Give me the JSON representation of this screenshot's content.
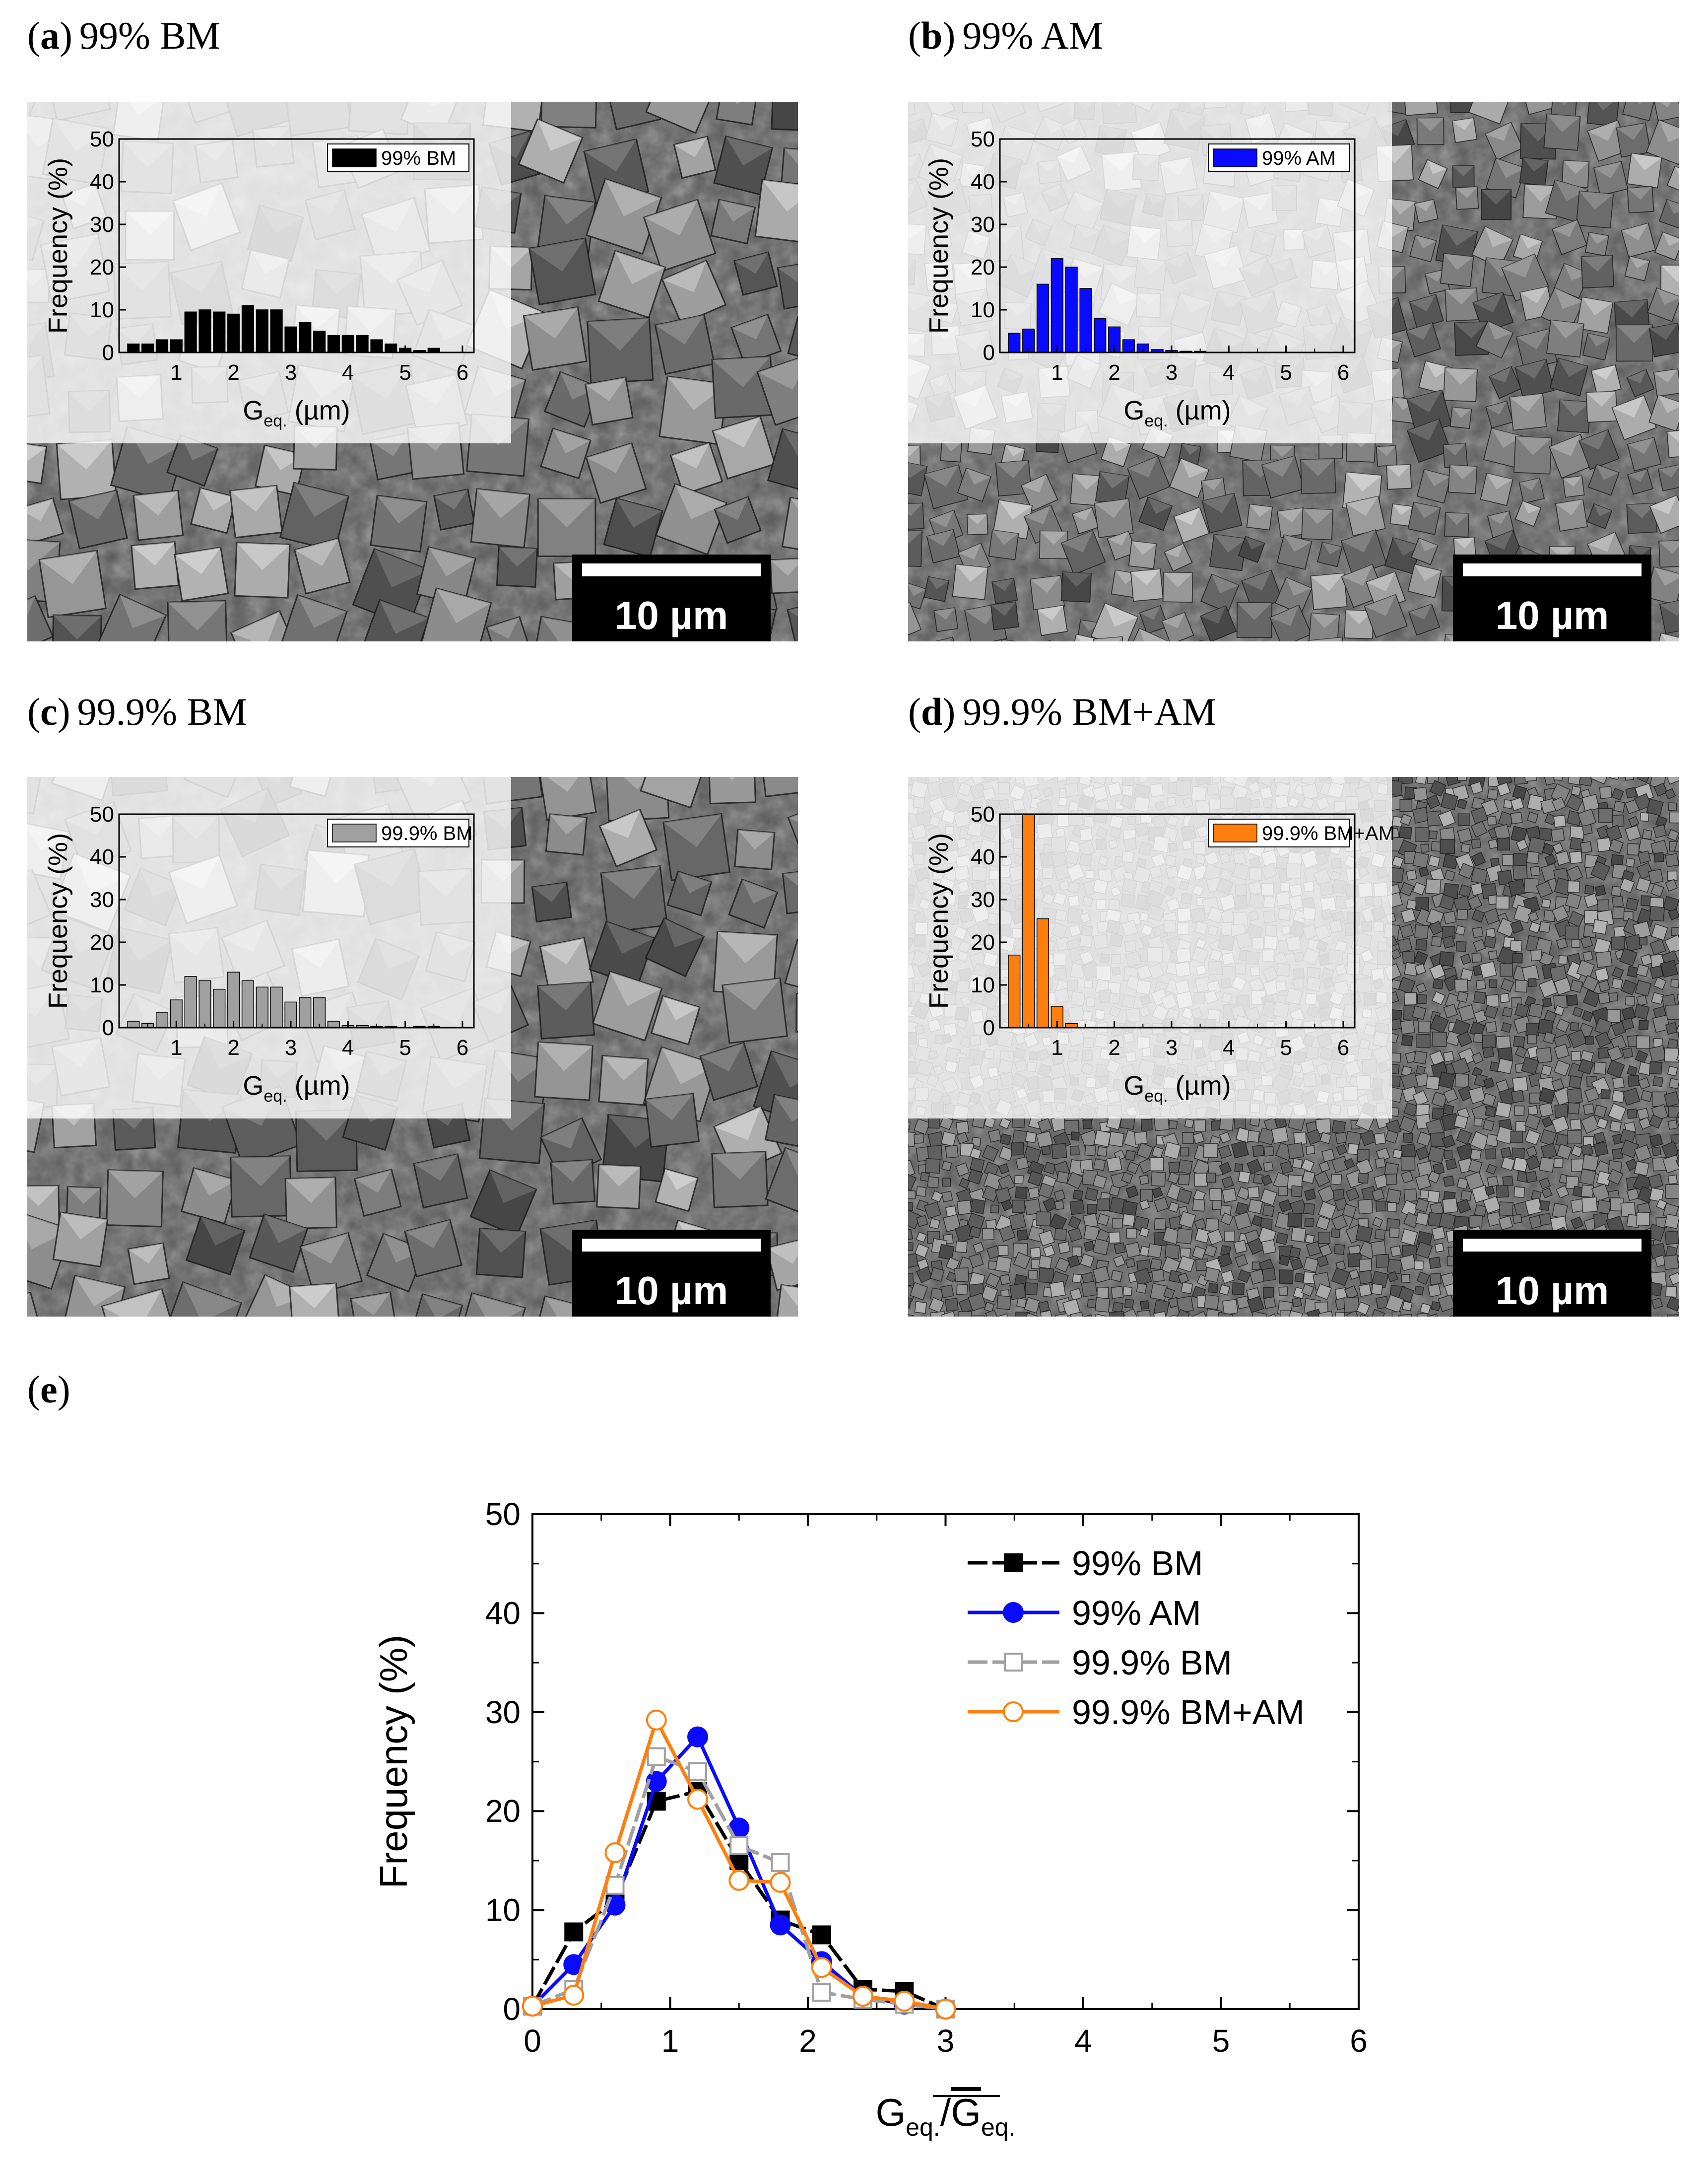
{
  "panels": [
    {
      "id": "a",
      "letter": "a",
      "title": "99% BM",
      "scale_bar": "10 µm",
      "sem_style": "coarse",
      "chart_data": {
        "type": "bar",
        "series_name": "99% BM",
        "color": "#000000",
        "bin_width": 0.25,
        "x": [
          0.25,
          0.5,
          0.75,
          1.0,
          1.25,
          1.5,
          1.75,
          2.0,
          2.25,
          2.5,
          2.75,
          3.0,
          3.25,
          3.5,
          3.75,
          4.0,
          4.25,
          4.5,
          4.75,
          5.0,
          5.25,
          5.5,
          5.75
        ],
        "values": [
          2,
          2,
          3,
          3,
          9.5,
          10,
          9.5,
          9,
          11,
          10,
          10,
          6,
          7,
          5,
          4,
          4,
          4,
          3,
          2,
          1,
          0.5,
          1,
          0
        ],
        "xlim": [
          0,
          6.2
        ],
        "ylim": [
          0,
          50
        ],
        "xticks": [
          "1",
          "2",
          "3",
          "4",
          "5",
          "6"
        ],
        "yticks": [
          "0",
          "10",
          "20",
          "30",
          "40",
          "50"
        ],
        "xlabel": "G",
        "xlabel_sub": "eq.",
        "xlabel_unit": " (µm)",
        "ylabel": "Frequency (%)"
      }
    },
    {
      "id": "b",
      "letter": "b",
      "title": "99% AM",
      "scale_bar": "10 µm",
      "sem_style": "medium",
      "chart_data": {
        "type": "bar",
        "series_name": "99% AM",
        "color": "#0a0aff",
        "bin_width": 0.25,
        "x": [
          0.25,
          0.5,
          0.75,
          1.0,
          1.25,
          1.5,
          1.75,
          2.0,
          2.25,
          2.5,
          2.75,
          3.0,
          3.25,
          3.5
        ],
        "values": [
          4.5,
          5.5,
          16,
          22,
          20,
          15,
          8,
          6,
          3,
          2,
          0.7,
          0.5,
          0.3,
          0.3
        ],
        "xlim": [
          0,
          6.2
        ],
        "ylim": [
          0,
          50
        ],
        "xticks": [
          "1",
          "2",
          "3",
          "4",
          "5",
          "6"
        ],
        "yticks": [
          "0",
          "10",
          "20",
          "30",
          "40",
          "50"
        ],
        "xlabel": "G",
        "xlabel_sub": "eq.",
        "xlabel_unit": " (µm)",
        "ylabel": "Frequency (%)"
      }
    },
    {
      "id": "c",
      "letter": "c",
      "title": "99.9% BM",
      "scale_bar": "10 µm",
      "sem_style": "coarse",
      "chart_data": {
        "type": "bar",
        "series_name": "99.9% BM",
        "color": "#a0a0a0",
        "bin_width": 0.25,
        "x": [
          0.25,
          0.5,
          0.75,
          1.0,
          1.25,
          1.5,
          1.75,
          2.0,
          2.25,
          2.5,
          2.75,
          3.0,
          3.25,
          3.5,
          3.75,
          4.0,
          4.25,
          4.5,
          4.75,
          5.0,
          5.25,
          5.5,
          5.75
        ],
        "values": [
          1.5,
          1,
          3.5,
          6.5,
          12,
          11,
          9,
          13,
          11,
          9.5,
          9.5,
          6,
          7,
          7,
          1.5,
          0.5,
          0.5,
          0.3,
          0.3,
          0,
          0.3,
          0.3,
          0
        ],
        "xlim": [
          0,
          6.2
        ],
        "ylim": [
          0,
          50
        ],
        "xticks": [
          "1",
          "2",
          "3",
          "4",
          "5",
          "6"
        ],
        "yticks": [
          "0",
          "10",
          "20",
          "30",
          "40",
          "50"
        ],
        "xlabel": "G",
        "xlabel_sub": "eq.",
        "xlabel_unit": " (µm)",
        "ylabel": "Frequency (%)"
      }
    },
    {
      "id": "d",
      "letter": "d",
      "title": "99.9% BM+AM",
      "scale_bar": "10 µm",
      "sem_style": "fine",
      "chart_data": {
        "type": "bar",
        "series_name": "99.9% BM+AM",
        "color": "#ff7f0e",
        "bin_width": 0.25,
        "x": [
          0.25,
          0.5,
          0.75,
          1.0,
          1.25
        ],
        "values": [
          17,
          50,
          25.5,
          5,
          1
        ],
        "xlim": [
          0,
          6.2
        ],
        "ylim": [
          0,
          50
        ],
        "xticks": [
          "1",
          "2",
          "3",
          "4",
          "5",
          "6"
        ],
        "yticks": [
          "0",
          "10",
          "20",
          "30",
          "40",
          "50"
        ],
        "xlabel": "G",
        "xlabel_sub": "eq.",
        "xlabel_unit": " (µm)",
        "ylabel": "Frequency (%)"
      }
    }
  ],
  "panel_e": {
    "letter": "e",
    "chart_data": {
      "type": "line",
      "x": [
        0,
        0.3,
        0.6,
        0.9,
        1.2,
        1.5,
        1.8,
        2.1,
        2.4,
        2.7,
        3.0
      ],
      "xlim": [
        0,
        6
      ],
      "ylim": [
        0,
        50
      ],
      "xticks": [
        "0",
        "1",
        "2",
        "3",
        "4",
        "5",
        "6"
      ],
      "yticks": [
        "0",
        "10",
        "20",
        "30",
        "40",
        "50"
      ],
      "ylabel": "Frequency (%)",
      "xlabel_num": "G",
      "xlabel_num_sub": "eq.",
      "xlabel_sep": "/",
      "xlabel_den": "G",
      "xlabel_den_sub": "eq.",
      "series": [
        {
          "name": "99% BM",
          "color": "#000000",
          "marker": "square",
          "filled": true,
          "dashed": true,
          "values": [
            0.3,
            7.8,
            11,
            21,
            22,
            15,
            9,
            7.5,
            2,
            1.8,
            0
          ]
        },
        {
          "name": "99% AM",
          "color": "#0a0aff",
          "marker": "circle",
          "filled": true,
          "dashed": false,
          "values": [
            0.3,
            4.5,
            10.5,
            23,
            27.5,
            18.3,
            8.5,
            4.8,
            1.3,
            0.5,
            0
          ]
        },
        {
          "name": "99.9% BM",
          "color": "#a0a0a0",
          "marker": "square",
          "filled": false,
          "dashed": true,
          "values": [
            0.3,
            2,
            12.5,
            25.5,
            24,
            16.5,
            14.8,
            1.7,
            1,
            0.5,
            0
          ]
        },
        {
          "name": "99.9% BM+AM",
          "color": "#ff7f0e",
          "marker": "circle",
          "filled": false,
          "dashed": false,
          "values": [
            0.3,
            1.4,
            15.8,
            29.2,
            21.2,
            13,
            12.8,
            4.2,
            1.3,
            0.8,
            0
          ]
        }
      ]
    }
  }
}
